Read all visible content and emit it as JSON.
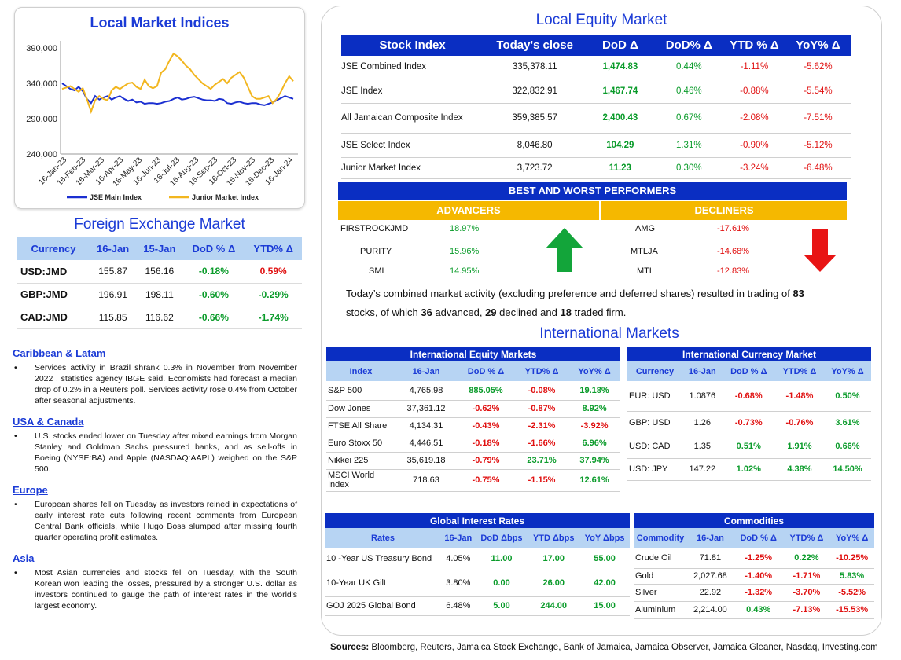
{
  "chart": {
    "title": "Local Market Indices",
    "chart_data": {
      "type": "line",
      "x_ticks": [
        "16-Jan-23",
        "16-Feb-23",
        "16-Mar-23",
        "16-Apr-23",
        "16-May-23",
        "16-Jun-23",
        "16-Jul-23",
        "16-Aug-23",
        "16-Sep-23",
        "16-Oct-23",
        "16-Nov-23",
        "16-Dec-23",
        "16-Jan-24"
      ],
      "y_ticks": [
        "390,000",
        "340,000",
        "290,000",
        "240,000"
      ],
      "ylim": [
        240000,
        400000
      ],
      "legend_position": "bottom",
      "series": [
        {
          "name": "JSE Main Index",
          "color": "#1b2fd1",
          "values": [
            340000,
            336000,
            332000,
            330000,
            335000,
            329000,
            318000,
            312000,
            322000,
            317000,
            320000,
            322000,
            317000,
            320000,
            322000,
            318000,
            315000,
            317000,
            313000,
            314000,
            311000,
            312000,
            312000,
            311000,
            312000,
            314000,
            315000,
            318000,
            320000,
            317000,
            318000,
            320000,
            321000,
            319000,
            317000,
            316000,
            316000,
            315000,
            318000,
            317000,
            312000,
            311000,
            313000,
            314000,
            312000,
            311000,
            312000,
            312000,
            310000,
            309000,
            311000,
            313000,
            316000,
            319000,
            322000,
            320000,
            318000
          ]
        },
        {
          "name": "Junior Market Index",
          "color": "#f2b61f",
          "values": [
            332000,
            334000,
            336000,
            332000,
            328000,
            333000,
            318000,
            300000,
            316000,
            322000,
            318000,
            316000,
            330000,
            335000,
            332000,
            336000,
            340000,
            341000,
            335000,
            332000,
            345000,
            336000,
            333000,
            336000,
            355000,
            360000,
            372000,
            382000,
            378000,
            372000,
            365000,
            360000,
            352000,
            346000,
            340000,
            336000,
            332000,
            338000,
            342000,
            346000,
            340000,
            348000,
            352000,
            356000,
            348000,
            335000,
            322000,
            318000,
            318000,
            320000,
            322000,
            312000,
            318000,
            328000,
            340000,
            350000,
            343000
          ]
        }
      ]
    }
  },
  "fx": {
    "title": "Foreign Exchange Market",
    "headers": [
      "Currency",
      "16-Jan",
      "15-Jan",
      "DoD % Δ",
      "YTD% Δ"
    ],
    "rows": [
      {
        "cur": "USD:JMD",
        "d1": "155.87",
        "d2": "156.16",
        "dod": "-0.18%",
        "dod_dir": "pos",
        "ytd": "0.59%",
        "ytd_dir": "neg"
      },
      {
        "cur": "GBP:JMD",
        "d1": "196.91",
        "d2": "198.11",
        "dod": "-0.60%",
        "dod_dir": "pos",
        "ytd": "-0.29%",
        "ytd_dir": "pos"
      },
      {
        "cur": "CAD:JMD",
        "d1": "115.85",
        "d2": "116.62",
        "dod": "-0.66%",
        "dod_dir": "pos",
        "ytd": "-1.74%",
        "ytd_dir": "pos"
      }
    ]
  },
  "news": [
    {
      "head": "Caribbean & Latam",
      "text": "Services activity in Brazil shrank 0.3% in November from November 2022 , statistics agency IBGE said. Economists had forecast a median drop of 0.2% in a Reuters poll. Services activity rose 0.4% from October after seasonal adjustments."
    },
    {
      "head": "USA & Canada",
      "text": "U.S. stocks ended lower on Tuesday after mixed earnings from Morgan Stanley and Goldman Sachs pressured banks, and as sell-offs in Boeing (NYSE:BA) and Apple (NASDAQ:AAPL) weighed on the S&P 500."
    },
    {
      "head": "Europe",
      "text": "European shares fell on Tuesday as investors reined in expectations of early interest rate cuts following recent comments from European Central Bank officials, while Hugo Boss slumped after missing fourth quarter operating profit estimates."
    },
    {
      "head": "Asia",
      "text": "Most Asian currencies and stocks fell on Tuesday, with the South Korean won leading the losses, pressured by a stronger U.S. dollar as investors continued to gauge the path of interest rates in the world's largest economy."
    }
  ],
  "equity": {
    "title": "Local Equity Market",
    "headers": [
      "Stock Index",
      "Today's close",
      "DoD  Δ",
      "DoD% Δ",
      "YTD % Δ",
      "YoY% Δ"
    ],
    "rows": [
      {
        "name": "JSE Combined Index",
        "close": "335,378.11",
        "dod": "1,474.83",
        "dodp": "0.44%",
        "ytd": "-1.11%",
        "yoy": "-5.62%"
      },
      {
        "name": "JSE Index",
        "close": "322,832.91",
        "dod": "1,467.74",
        "dodp": "0.46%",
        "ytd": "-0.88%",
        "yoy": "-5.54%"
      },
      {
        "name": "All Jamaican Composite Index",
        "close": "359,385.57",
        "dod": "2,400.43",
        "dodp": "0.67%",
        "ytd": "-2.08%",
        "yoy": "-7.51%"
      },
      {
        "name": "JSE Select Index",
        "close": "8,046.80",
        "dod": "104.29",
        "dodp": "1.31%",
        "ytd": "-0.90%",
        "yoy": "-5.12%"
      },
      {
        "name": "Junior Market Index",
        "close": "3,723.72",
        "dod": "11.23",
        "dodp": "0.30%",
        "ytd": "-3.24%",
        "yoy": "-6.48%"
      }
    ]
  },
  "performers": {
    "title": "BEST AND WORST PERFORMERS",
    "adv_label": "ADVANCERS",
    "dec_label": "DECLINERS",
    "advancers": [
      {
        "name": "FIRSTROCKJMD",
        "pct": "18.97%"
      },
      {
        "name": "PURITY",
        "pct": "15.96%"
      },
      {
        "name": "SML",
        "pct": "14.95%"
      }
    ],
    "decliners": [
      {
        "name": "AMG",
        "pct": "-17.61%"
      },
      {
        "name": "MTLJA",
        "pct": "-14.68%"
      },
      {
        "name": "MTL",
        "pct": "-12.83%"
      }
    ]
  },
  "summary": {
    "t1": "Today’s combined market activity (excluding preference and deferred shares) resulted in trading of ",
    "traded": "83",
    "t2": "stocks, of which ",
    "advanced": "36",
    "t3": " advanced, ",
    "declined": "29",
    "t4": " declined and ",
    "firm": "18",
    "t5": " traded firm."
  },
  "intl": {
    "title": "International Markets",
    "equity": {
      "title": "International Equity Markets",
      "headers": [
        "Index",
        "16-Jan",
        "DoD % Δ",
        "YTD% Δ",
        "YoY% Δ"
      ],
      "rows": [
        {
          "name": "S&P 500",
          "v": "4,765.98",
          "dod": "885.05%",
          "dod_dir": "pos",
          "ytd": "-0.08%",
          "ytd_dir": "neg",
          "yoy": "19.18%",
          "yoy_dir": "pos"
        },
        {
          "name": "Dow Jones",
          "v": "37,361.12",
          "dod": "-0.62%",
          "dod_dir": "neg",
          "ytd": "-0.87%",
          "ytd_dir": "neg",
          "yoy": "8.92%",
          "yoy_dir": "pos"
        },
        {
          "name": "FTSE All Share",
          "v": "4,134.31",
          "dod": "-0.43%",
          "dod_dir": "neg",
          "ytd": "-2.31%",
          "ytd_dir": "neg",
          "yoy": "-3.92%",
          "yoy_dir": "neg"
        },
        {
          "name": "Euro Stoxx 50",
          "v": "4,446.51",
          "dod": "-0.18%",
          "dod_dir": "neg",
          "ytd": "-1.66%",
          "ytd_dir": "neg",
          "yoy": "6.96%",
          "yoy_dir": "pos"
        },
        {
          "name": "Nikkei 225",
          "v": "35,619.18",
          "dod": "-0.79%",
          "dod_dir": "neg",
          "ytd": "23.71%",
          "ytd_dir": "pos",
          "yoy": "37.94%",
          "yoy_dir": "pos"
        },
        {
          "name": "MSCI World Index",
          "v": "718.63",
          "dod": "-0.75%",
          "dod_dir": "neg",
          "ytd": "-1.15%",
          "ytd_dir": "neg",
          "yoy": "12.61%",
          "yoy_dir": "pos"
        }
      ]
    },
    "currency": {
      "title": "International Currency Market",
      "headers": [
        "Currency",
        "16-Jan",
        "DoD % Δ",
        "YTD% Δ",
        "YoY% Δ"
      ],
      "rows": [
        {
          "name": "EUR: USD",
          "v": "1.0876",
          "dod": "-0.68%",
          "dod_dir": "neg",
          "ytd": "-1.48%",
          "ytd_dir": "neg",
          "yoy": "0.50%",
          "yoy_dir": "pos"
        },
        {
          "name": "GBP: USD",
          "v": "1.26",
          "dod": "-0.73%",
          "dod_dir": "neg",
          "ytd": "-0.76%",
          "ytd_dir": "neg",
          "yoy": "3.61%",
          "yoy_dir": "pos"
        },
        {
          "name": "USD: CAD",
          "v": "1.35",
          "dod": "0.51%",
          "dod_dir": "pos",
          "ytd": "1.91%",
          "ytd_dir": "pos",
          "yoy": "0.66%",
          "yoy_dir": "pos"
        },
        {
          "name": "USD: JPY",
          "v": "147.22",
          "dod": "1.02%",
          "dod_dir": "pos",
          "ytd": "4.38%",
          "ytd_dir": "pos",
          "yoy": "14.50%",
          "yoy_dir": "pos"
        }
      ]
    },
    "rates": {
      "title": "Global Interest Rates",
      "headers": [
        "Rates",
        "16-Jan",
        "DoD Δbps",
        "YTD Δbps",
        "YoY Δbps"
      ],
      "rows": [
        {
          "name": "10 -Year US Treasury Bond",
          "v": "4.05%",
          "dod": "11.00",
          "ytd": "17.00",
          "yoy": "55.00"
        },
        {
          "name": "10-Year UK Gilt",
          "v": "3.80%",
          "dod": "0.00",
          "ytd": "26.00",
          "yoy": "42.00"
        },
        {
          "name": "GOJ 2025 Global Bond",
          "v": "6.48%",
          "dod": "5.00",
          "ytd": "244.00",
          "yoy": "15.00"
        }
      ]
    },
    "commodities": {
      "title": "Commodities",
      "headers": [
        "Commodity",
        "16-Jan",
        "DoD % Δ",
        "YTD% Δ",
        "YoY% Δ"
      ],
      "rows": [
        {
          "name": "Crude Oil",
          "v": "71.81",
          "dod": "-1.25%",
          "dod_dir": "neg",
          "ytd": "0.22%",
          "ytd_dir": "pos",
          "yoy": "-10.25%",
          "yoy_dir": "neg"
        },
        {
          "name": "Gold",
          "v": "2,027.68",
          "dod": "-1.40%",
          "dod_dir": "neg",
          "ytd": "-1.71%",
          "ytd_dir": "neg",
          "yoy": "5.83%",
          "yoy_dir": "pos"
        },
        {
          "name": "Silver",
          "v": "22.92",
          "dod": "-1.32%",
          "dod_dir": "neg",
          "ytd": "-3.70%",
          "ytd_dir": "neg",
          "yoy": "-5.52%",
          "yoy_dir": "neg"
        },
        {
          "name": "Aluminium",
          "v": "2,214.00",
          "dod": "0.43%",
          "dod_dir": "pos",
          "ytd": "-7.13%",
          "ytd_dir": "neg",
          "yoy": "-15.53%",
          "yoy_dir": "neg"
        }
      ]
    }
  },
  "sources": {
    "label": "Sources:",
    "text": " Bloomberg, Reuters, Jamaica Stock Exchange, Bank of Jamaica, Jamaica Observer, Jamaica Gleaner, Nasdaq, Investing.com"
  },
  "colors": {
    "blue": "#0a2ec2",
    "light": "#b7d4f3",
    "green": "#0a9b2a",
    "red": "#e01010",
    "gold": "#f5b800"
  }
}
